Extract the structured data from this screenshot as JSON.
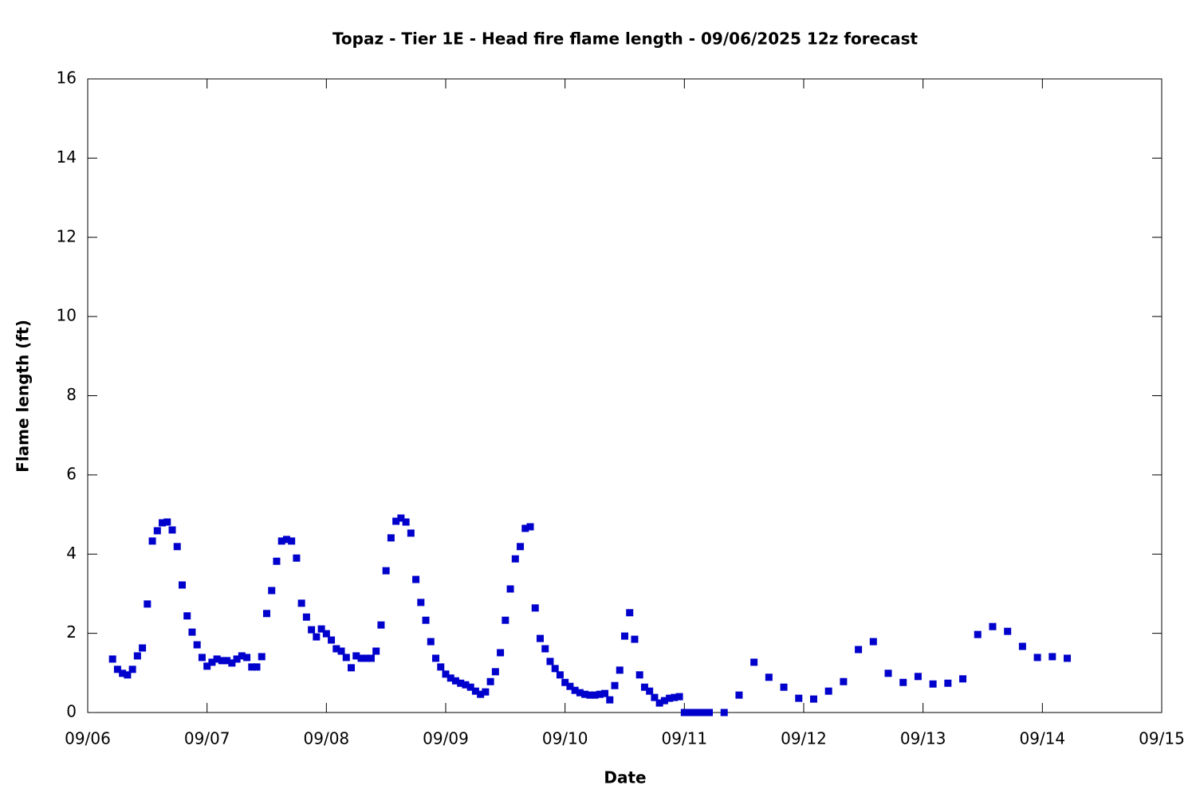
{
  "chart_data": {
    "type": "scatter",
    "title": "Topaz - Tier 1E - Head fire flame length - 09/06/2025 12z forecast",
    "x_label": "Date",
    "y_label": "Flame length (ft)",
    "color": "#0000cc",
    "xlim": [
      0,
      216
    ],
    "xticks": [
      {
        "value": 0,
        "label": "09/06"
      },
      {
        "value": 24,
        "label": "09/07"
      },
      {
        "value": 48,
        "label": "09/08"
      },
      {
        "value": 72,
        "label": "09/09"
      },
      {
        "value": 96,
        "label": "09/10"
      },
      {
        "value": 120,
        "label": "09/11"
      },
      {
        "value": 144,
        "label": "09/12"
      },
      {
        "value": 168,
        "label": "09/13"
      },
      {
        "value": 192,
        "label": "09/14"
      },
      {
        "value": 216,
        "label": "09/15"
      }
    ],
    "ylim": [
      0,
      16
    ],
    "yticks": [
      0,
      2,
      4,
      6,
      8,
      10,
      12,
      14,
      16
    ],
    "x": [
      5,
      6,
      7,
      8,
      9,
      10,
      11,
      12,
      13,
      14,
      15,
      16,
      17,
      18,
      19,
      20,
      21,
      22,
      23,
      24,
      25,
      26,
      27,
      28,
      29,
      30,
      31,
      32,
      33,
      34,
      35,
      36,
      37,
      38,
      39,
      40,
      41,
      42,
      43,
      44,
      45,
      46,
      47,
      48,
      49,
      50,
      51,
      52,
      53,
      54,
      55,
      56,
      57,
      58,
      59,
      60,
      61,
      62,
      63,
      64,
      65,
      66,
      67,
      68,
      69,
      70,
      71,
      72,
      73,
      74,
      75,
      76,
      77,
      78,
      79,
      80,
      81,
      82,
      83,
      84,
      85,
      86,
      87,
      88,
      89,
      90,
      91,
      92,
      93,
      94,
      95,
      96,
      97,
      98,
      99,
      100,
      101,
      102,
      103,
      104,
      105,
      106,
      107,
      108,
      109,
      110,
      111,
      112,
      113,
      114,
      115,
      116,
      117,
      118,
      119,
      120,
      121,
      122,
      123,
      124,
      125,
      128,
      131,
      134,
      137,
      140,
      143,
      146,
      149,
      152,
      155,
      158,
      161,
      164,
      167,
      170,
      173,
      176,
      179,
      182,
      185,
      188,
      191,
      194,
      197
    ],
    "values": [
      1.35,
      1.09,
      0.99,
      0.95,
      1.09,
      1.43,
      1.63,
      2.74,
      4.33,
      4.59,
      4.79,
      4.81,
      4.61,
      4.19,
      3.22,
      2.44,
      2.03,
      1.71,
      1.39,
      1.17,
      1.27,
      1.35,
      1.31,
      1.31,
      1.25,
      1.35,
      1.43,
      1.39,
      1.15,
      1.15,
      1.41,
      2.5,
      3.08,
      3.82,
      4.33,
      4.37,
      4.33,
      3.9,
      2.76,
      2.41,
      2.09,
      1.91,
      2.11,
      1.99,
      1.83,
      1.61,
      1.55,
      1.39,
      1.13,
      1.43,
      1.37,
      1.37,
      1.37,
      1.55,
      2.21,
      3.58,
      4.41,
      4.83,
      4.91,
      4.81,
      4.53,
      3.36,
      2.78,
      2.33,
      1.79,
      1.37,
      1.15,
      0.97,
      0.87,
      0.8,
      0.74,
      0.7,
      0.64,
      0.54,
      0.46,
      0.52,
      0.78,
      1.03,
      1.51,
      2.33,
      3.12,
      3.88,
      4.19,
      4.65,
      4.69,
      2.64,
      1.87,
      1.61,
      1.29,
      1.11,
      0.95,
      0.76,
      0.66,
      0.56,
      0.5,
      0.46,
      0.44,
      0.44,
      0.46,
      0.48,
      0.32,
      0.68,
      1.07,
      1.93,
      2.52,
      1.85,
      0.95,
      0.64,
      0.54,
      0.38,
      0.24,
      0.3,
      0.36,
      0.38,
      0.4,
      0,
      0,
      0,
      0,
      0,
      0,
      0,
      0.44,
      1.27,
      0.89,
      0.64,
      0.36,
      0.34,
      0.54,
      0.78,
      1.59,
      1.79,
      0.99,
      0.76,
      0.91,
      0.72,
      0.74,
      0.85,
      1.97,
      2.17,
      2.05,
      1.67,
      1.39,
      1.41,
      1.37
    ]
  }
}
